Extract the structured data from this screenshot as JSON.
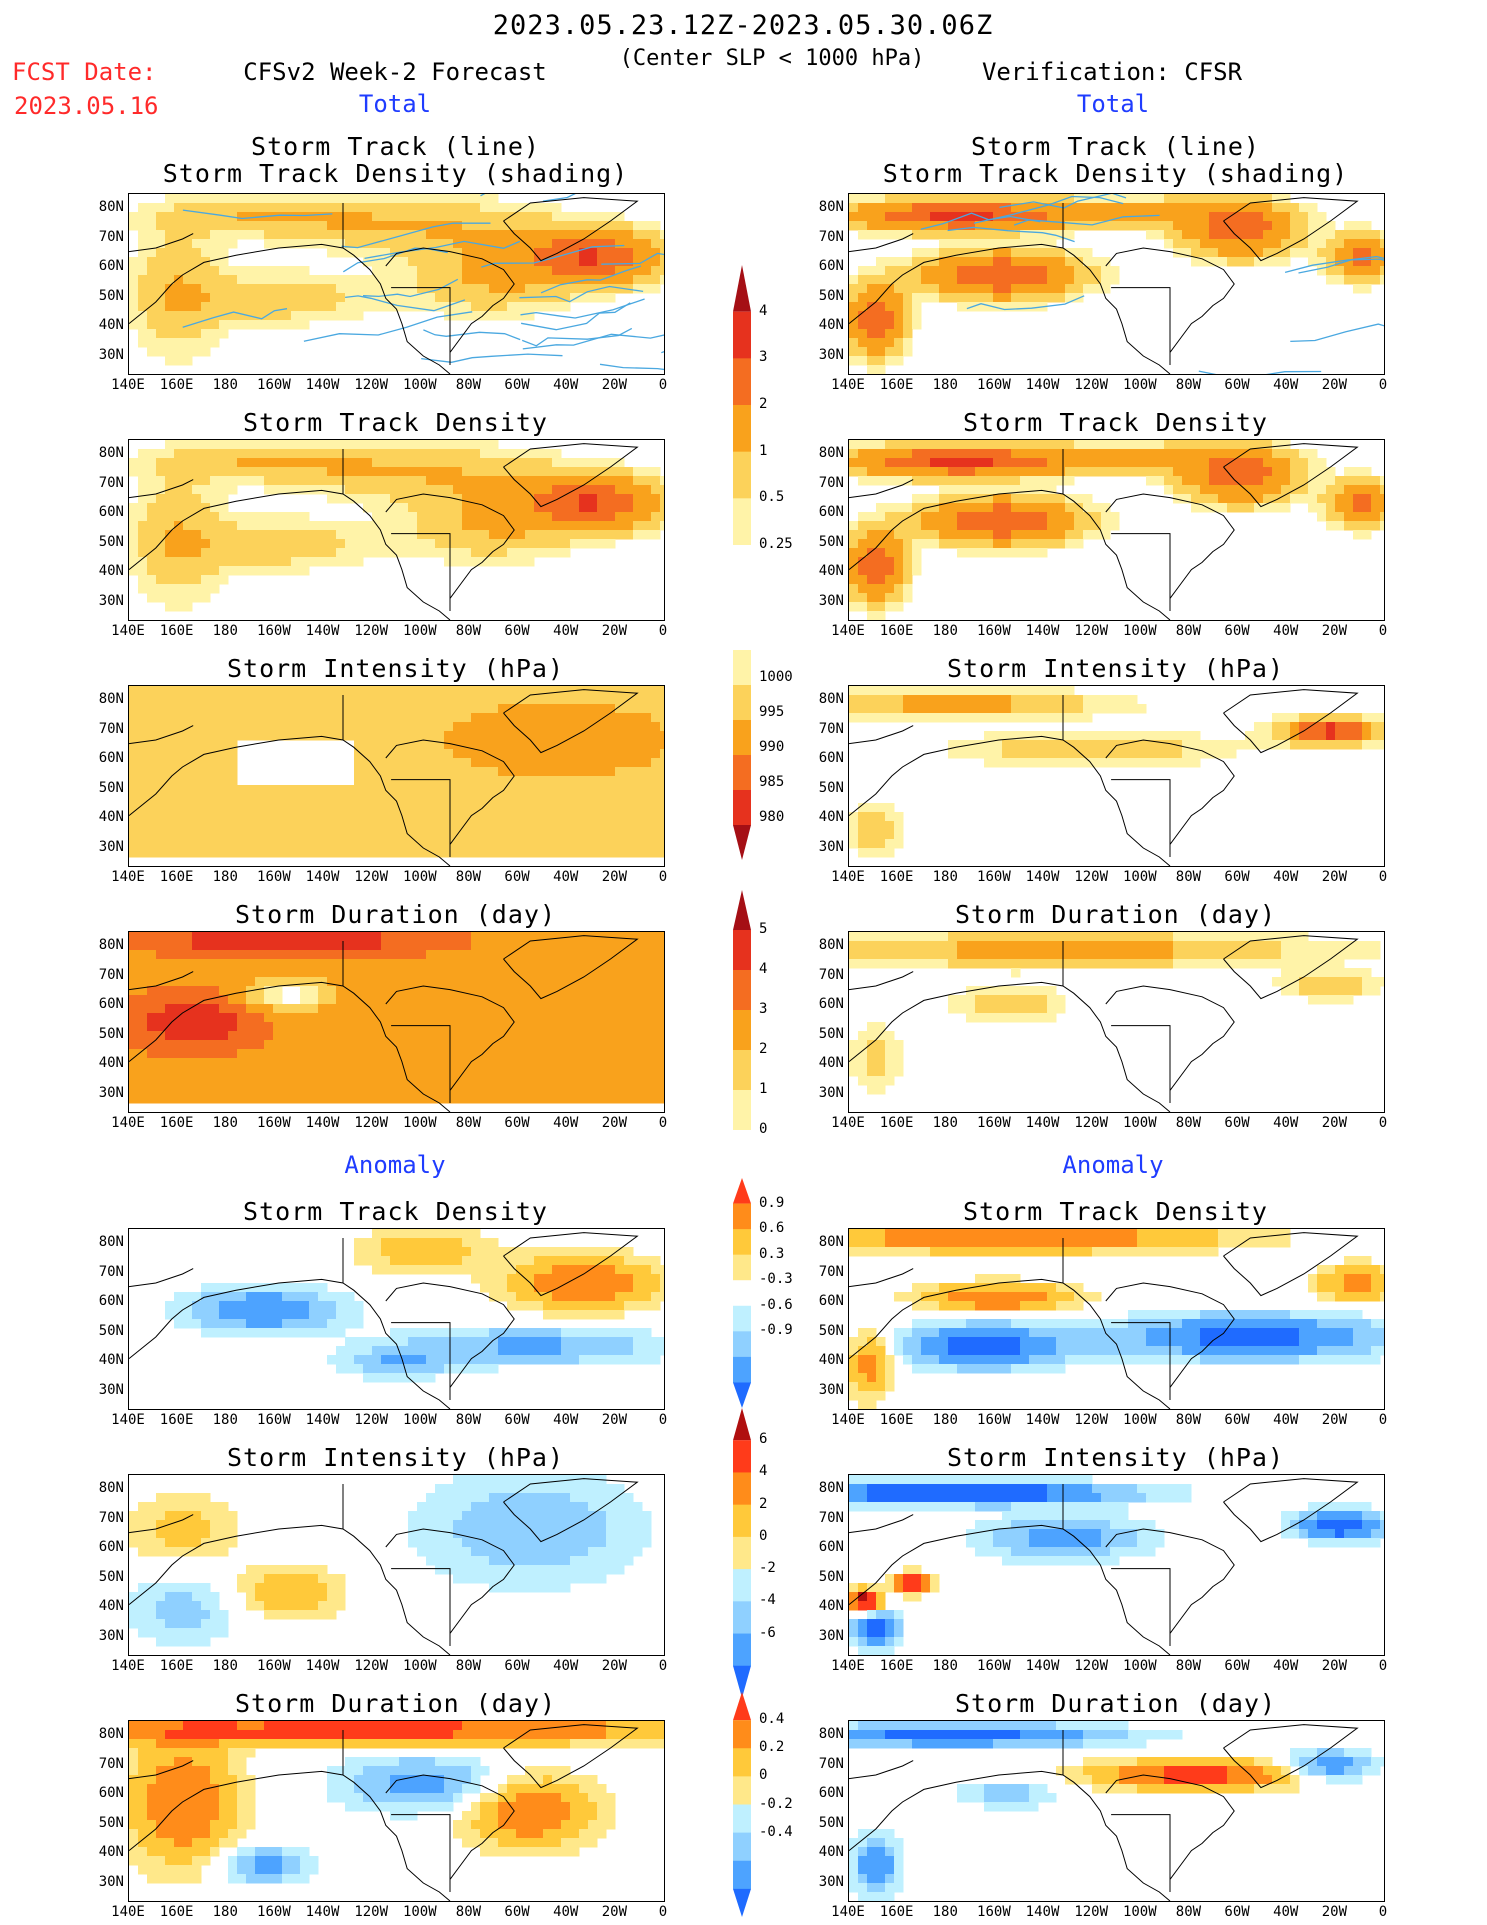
{
  "header": {
    "date_range": "2023.05.23.12Z-2023.05.30.06Z",
    "subtitle": "(Center SLP < 1000 hPa)",
    "fcst_label": "FCST Date:",
    "fcst_date": "2023.05.16",
    "left_model": "CFSv2 Week-2 Forecast",
    "right_model": "Verification: CFSR"
  },
  "sections": {
    "total": "Total",
    "anomaly": "Anomaly"
  },
  "panel_titles": {
    "track_line": "Storm Track (line)",
    "track_shading": "Storm Track Density (shading)",
    "density": "Storm Track Density",
    "intensity": "Storm Intensity (hPa)",
    "duration": "Storm Duration (day)"
  },
  "lat_labels": [
    "80N",
    "70N",
    "60N",
    "50N",
    "40N",
    "30N"
  ],
  "lon_labels": [
    "140E",
    "160E",
    "180",
    "160W",
    "140W",
    "120W",
    "100W",
    "80W",
    "60W",
    "40W",
    "20W",
    "0"
  ],
  "colorbars": {
    "total_density": {
      "labels": [
        "4",
        "3",
        "2",
        "1",
        "0.5",
        "0.25"
      ],
      "colors": [
        "#a50f15",
        "#e6321e",
        "#f46d21",
        "#f9a21c",
        "#fcd25a",
        "#fff3a8"
      ]
    },
    "total_intensity": {
      "labels": [
        "1000",
        "995",
        "990",
        "985",
        "980"
      ],
      "colors": [
        "#fff3a8",
        "#fcd25a",
        "#f9a21c",
        "#f46d21",
        "#e6321e",
        "#a50f15"
      ]
    },
    "total_duration": {
      "labels": [
        "5",
        "4",
        "3",
        "2",
        "1",
        "0"
      ],
      "colors": [
        "#a50f15",
        "#e6321e",
        "#f46d21",
        "#f9a21c",
        "#fcd25a",
        "#fff3a8"
      ]
    },
    "anom_density": {
      "labels": [
        "0.9",
        "0.6",
        "0.3",
        "-0.3",
        "-0.6",
        "-0.9"
      ],
      "colors": [
        "#ff3b1a",
        "#ff8c1a",
        "#ffc93a",
        "#ffe88a",
        "#ffffff",
        "#bff0ff",
        "#8fd0ff",
        "#4da3ff",
        "#1f6bff"
      ]
    },
    "anom_intensity": {
      "labels": [
        "6",
        "4",
        "2",
        "0",
        "-2",
        "-4",
        "-6"
      ],
      "colors": [
        "#b00f0f",
        "#ff3b1a",
        "#ff8c1a",
        "#ffc93a",
        "#ffe88a",
        "#bff0ff",
        "#8fd0ff",
        "#4da3ff",
        "#1f6bff"
      ]
    },
    "anom_duration": {
      "labels": [
        "0.4",
        "0.2",
        "0",
        "-0.2",
        "-0.4"
      ],
      "colors": [
        "#ff3b1a",
        "#ff8c1a",
        "#ffc93a",
        "#ffe88a",
        "#bff0ff",
        "#8fd0ff",
        "#4da3ff",
        "#1f6bff"
      ]
    }
  },
  "fields": {
    "palette_total": [
      "#ffffff",
      "#fff3a8",
      "#fcd25a",
      "#f9a21c",
      "#f46d21",
      "#e6321e",
      "#a50f15"
    ],
    "palette_anom": [
      "#1f6bff",
      "#4da3ff",
      "#8fd0ff",
      "#bff0ff",
      "#ffffff",
      "#ffe88a",
      "#ffc93a",
      "#ff8c1a",
      "#ff3b1a",
      "#b00f0f"
    ],
    "track_line_color": "#4aa8e0"
  }
}
